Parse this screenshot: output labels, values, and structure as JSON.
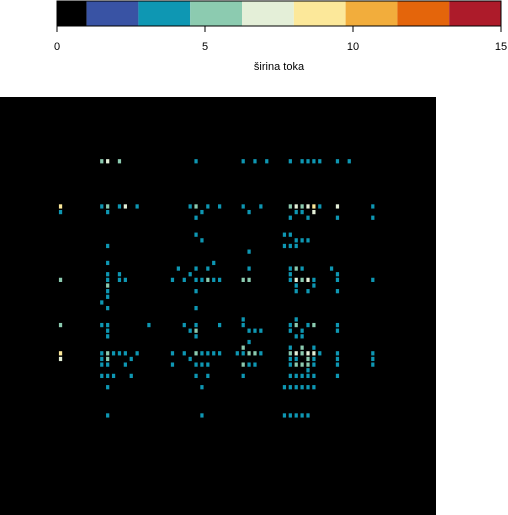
{
  "chart_data": [
    {
      "type": "colorbar",
      "xlabel": "širina toka",
      "xlim": [
        0,
        15
      ],
      "ticks": [
        0,
        5,
        10,
        15
      ],
      "tick_labels": [
        "0",
        "5",
        "10",
        "15"
      ],
      "bins": [
        {
          "from": 0.0,
          "to": 1.0,
          "color": "#000000"
        },
        {
          "from": 1.0,
          "to": 2.75,
          "color": "#3953a4"
        },
        {
          "from": 2.75,
          "to": 4.5,
          "color": "#0e97b3"
        },
        {
          "from": 4.5,
          "to": 6.25,
          "color": "#8ccbb0"
        },
        {
          "from": 6.25,
          "to": 8.0,
          "color": "#e4efd8"
        },
        {
          "from": 8.0,
          "to": 9.75,
          "color": "#fce89a"
        },
        {
          "from": 9.75,
          "to": 11.5,
          "color": "#f2ad3c"
        },
        {
          "from": 11.5,
          "to": 13.25,
          "color": "#e4650b"
        },
        {
          "from": 13.25,
          "to": 15.0,
          "color": "#ad1b2a"
        }
      ]
    },
    {
      "type": "heatmap",
      "grid": [
        74,
        74
      ],
      "background": "#000000",
      "cells": [
        [
          17,
          11,
          5
        ],
        [
          18,
          11,
          7
        ],
        [
          20,
          11,
          5
        ],
        [
          33,
          11,
          3
        ],
        [
          41,
          11,
          3
        ],
        [
          43,
          11,
          3
        ],
        [
          45,
          11,
          3
        ],
        [
          49,
          11,
          3
        ],
        [
          51,
          11,
          3
        ],
        [
          52,
          11,
          4
        ],
        [
          53,
          11,
          3
        ],
        [
          54,
          11,
          3
        ],
        [
          57,
          11,
          3
        ],
        [
          59,
          11,
          3
        ],
        [
          10,
          19,
          9
        ],
        [
          10,
          20,
          3
        ],
        [
          17,
          19,
          3
        ],
        [
          18,
          19,
          5
        ],
        [
          18,
          20,
          3
        ],
        [
          20,
          19,
          4
        ],
        [
          21,
          19,
          7
        ],
        [
          23,
          19,
          3
        ],
        [
          32,
          19,
          3
        ],
        [
          33,
          19,
          6
        ],
        [
          34,
          20,
          3
        ],
        [
          35,
          19,
          4
        ],
        [
          37,
          19,
          3
        ],
        [
          41,
          19,
          4
        ],
        [
          42,
          20,
          3
        ],
        [
          44,
          19,
          3
        ],
        [
          49,
          19,
          5
        ],
        [
          50,
          19,
          7
        ],
        [
          51,
          19,
          6
        ],
        [
          52,
          19,
          7
        ],
        [
          53,
          19,
          8
        ],
        [
          54,
          19,
          3
        ],
        [
          57,
          19,
          7
        ],
        [
          63,
          19,
          3
        ],
        [
          51,
          20,
          3
        ],
        [
          53,
          20,
          7
        ],
        [
          50,
          20,
          4
        ],
        [
          49,
          21,
          4
        ],
        [
          52,
          21,
          3
        ],
        [
          57,
          21,
          3
        ],
        [
          63,
          21,
          3
        ],
        [
          33,
          21,
          3
        ],
        [
          33,
          24,
          3
        ],
        [
          34,
          25,
          3
        ],
        [
          48,
          24,
          3
        ],
        [
          49,
          24,
          3
        ],
        [
          50,
          25,
          3
        ],
        [
          51,
          25,
          3
        ],
        [
          52,
          25,
          3
        ],
        [
          18,
          26,
          3
        ],
        [
          42,
          27,
          3
        ],
        [
          48,
          26,
          3
        ],
        [
          49,
          26,
          3
        ],
        [
          50,
          26,
          3
        ],
        [
          18,
          29,
          3
        ],
        [
          18,
          31,
          3
        ],
        [
          20,
          31,
          3
        ],
        [
          30,
          30,
          3
        ],
        [
          33,
          30,
          3
        ],
        [
          35,
          30,
          3
        ],
        [
          36,
          29,
          3
        ],
        [
          42,
          30,
          3
        ],
        [
          49,
          30,
          3
        ],
        [
          50,
          30,
          5
        ],
        [
          51,
          30,
          3
        ],
        [
          56,
          30,
          3
        ],
        [
          57,
          31,
          3
        ],
        [
          10,
          32,
          5
        ],
        [
          18,
          32,
          4
        ],
        [
          18,
          33,
          6
        ],
        [
          20,
          32,
          3
        ],
        [
          21,
          32,
          3
        ],
        [
          29,
          32,
          3
        ],
        [
          31,
          32,
          3
        ],
        [
          32,
          31,
          3
        ],
        [
          33,
          32,
          4
        ],
        [
          34,
          32,
          3
        ],
        [
          35,
          32,
          5
        ],
        [
          36,
          32,
          3
        ],
        [
          37,
          32,
          3
        ],
        [
          41,
          32,
          5
        ],
        [
          42,
          32,
          6
        ],
        [
          50,
          32,
          7
        ],
        [
          51,
          32,
          5
        ],
        [
          52,
          32,
          7
        ],
        [
          53,
          32,
          4
        ],
        [
          57,
          32,
          4
        ],
        [
          63,
          32,
          3
        ],
        [
          49,
          32,
          3
        ],
        [
          50,
          33,
          4
        ],
        [
          53,
          33,
          3
        ],
        [
          49,
          31,
          3
        ],
        [
          18,
          34,
          3
        ],
        [
          18,
          35,
          3
        ],
        [
          33,
          34,
          3
        ],
        [
          50,
          34,
          3
        ],
        [
          52,
          34,
          3
        ],
        [
          57,
          34,
          3
        ],
        [
          18,
          37,
          3
        ],
        [
          33,
          37,
          3
        ],
        [
          17,
          36,
          3
        ],
        [
          10,
          40,
          5
        ],
        [
          17,
          40,
          3
        ],
        [
          18,
          41,
          4
        ],
        [
          18,
          40,
          3
        ],
        [
          25,
          40,
          3
        ],
        [
          31,
          40,
          3
        ],
        [
          32,
          41,
          3
        ],
        [
          33,
          40,
          3
        ],
        [
          33,
          41,
          5
        ],
        [
          37,
          40,
          3
        ],
        [
          41,
          40,
          4
        ],
        [
          42,
          41,
          3
        ],
        [
          43,
          41,
          3
        ],
        [
          44,
          41,
          3
        ],
        [
          49,
          40,
          3
        ],
        [
          50,
          40,
          5
        ],
        [
          51,
          41,
          4
        ],
        [
          52,
          40,
          3
        ],
        [
          53,
          40,
          5
        ],
        [
          49,
          41,
          4
        ],
        [
          57,
          40,
          3
        ],
        [
          57,
          41,
          3
        ],
        [
          41,
          39,
          3
        ],
        [
          50,
          39,
          3
        ],
        [
          18,
          42,
          3
        ],
        [
          33,
          42,
          3
        ],
        [
          50,
          42,
          3
        ],
        [
          51,
          42,
          3
        ],
        [
          10,
          45,
          9
        ],
        [
          10,
          46,
          7
        ],
        [
          17,
          45,
          3
        ],
        [
          18,
          45,
          6
        ],
        [
          18,
          46,
          5
        ],
        [
          19,
          45,
          3
        ],
        [
          20,
          45,
          3
        ],
        [
          17,
          46,
          3
        ],
        [
          21,
          45,
          3
        ],
        [
          22,
          46,
          3
        ],
        [
          23,
          45,
          3
        ],
        [
          29,
          45,
          3
        ],
        [
          31,
          45,
          3
        ],
        [
          32,
          46,
          3
        ],
        [
          33,
          45,
          5
        ],
        [
          34,
          45,
          4
        ],
        [
          35,
          45,
          3
        ],
        [
          36,
          45,
          3
        ],
        [
          37,
          45,
          3
        ],
        [
          40,
          45,
          3
        ],
        [
          41,
          45,
          4
        ],
        [
          42,
          45,
          5
        ],
        [
          43,
          45,
          5
        ],
        [
          44,
          45,
          3
        ],
        [
          41,
          44,
          5
        ],
        [
          42,
          43,
          3
        ],
        [
          49,
          45,
          5
        ],
        [
          50,
          45,
          7
        ],
        [
          51,
          45,
          6
        ],
        [
          52,
          45,
          7
        ],
        [
          53,
          45,
          7
        ],
        [
          54,
          45,
          3
        ],
        [
          57,
          45,
          3
        ],
        [
          63,
          45,
          3
        ],
        [
          49,
          44,
          4
        ],
        [
          51,
          44,
          5
        ],
        [
          53,
          44,
          3
        ],
        [
          49,
          46,
          3
        ],
        [
          50,
          46,
          4
        ],
        [
          52,
          46,
          5
        ],
        [
          53,
          46,
          3
        ],
        [
          57,
          46,
          4
        ],
        [
          63,
          46,
          3
        ],
        [
          17,
          47,
          3
        ],
        [
          18,
          47,
          4
        ],
        [
          21,
          47,
          3
        ],
        [
          29,
          47,
          3
        ],
        [
          33,
          47,
          3
        ],
        [
          34,
          47,
          4
        ],
        [
          35,
          47,
          3
        ],
        [
          41,
          47,
          5
        ],
        [
          42,
          47,
          3
        ],
        [
          43,
          47,
          4
        ],
        [
          49,
          47,
          3
        ],
        [
          50,
          47,
          6
        ],
        [
          51,
          47,
          5
        ],
        [
          52,
          47,
          6
        ],
        [
          53,
          47,
          4
        ],
        [
          57,
          47,
          3
        ],
        [
          63,
          47,
          3
        ],
        [
          52,
          48,
          3
        ],
        [
          17,
          49,
          3
        ],
        [
          18,
          49,
          3
        ],
        [
          19,
          49,
          3
        ],
        [
          22,
          49,
          3
        ],
        [
          33,
          49,
          3
        ],
        [
          35,
          49,
          3
        ],
        [
          41,
          49,
          3
        ],
        [
          49,
          49,
          3
        ],
        [
          50,
          49,
          3
        ],
        [
          51,
          49,
          3
        ],
        [
          52,
          49,
          3
        ],
        [
          53,
          49,
          3
        ],
        [
          57,
          49,
          3
        ],
        [
          18,
          51,
          3
        ],
        [
          34,
          51,
          3
        ],
        [
          48,
          51,
          3
        ],
        [
          49,
          51,
          3
        ],
        [
          50,
          51,
          3
        ],
        [
          51,
          51,
          3
        ],
        [
          52,
          51,
          3
        ],
        [
          53,
          51,
          3
        ],
        [
          18,
          56,
          3
        ],
        [
          34,
          56,
          3
        ],
        [
          48,
          56,
          3
        ],
        [
          49,
          56,
          3
        ],
        [
          50,
          56,
          3
        ],
        [
          51,
          56,
          3
        ],
        [
          52,
          56,
          3
        ]
      ]
    }
  ]
}
